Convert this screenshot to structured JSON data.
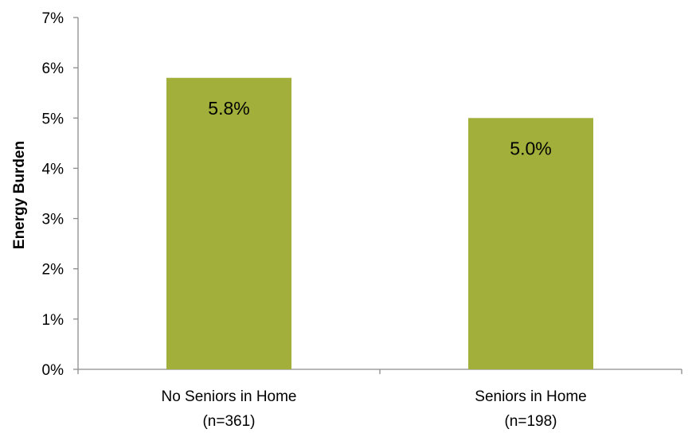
{
  "chart_data": {
    "type": "bar",
    "title": "",
    "xlabel": "",
    "ylabel": "Energy Burden",
    "categories": [
      [
        "No Seniors in Home",
        "(n=361)"
      ],
      [
        "Seniors in Home",
        "(n=198)"
      ]
    ],
    "values": [
      0.058,
      0.05
    ],
    "data_labels": [
      "5.8%",
      "5.0%"
    ],
    "ylim": [
      0,
      0.07
    ],
    "yticks": [
      0,
      0.01,
      0.02,
      0.03,
      0.04,
      0.05,
      0.06,
      0.07
    ],
    "ytick_labels": [
      "0%",
      "1%",
      "2%",
      "3%",
      "4%",
      "5%",
      "6%",
      "7%"
    ],
    "grid": false,
    "legend": "none",
    "colors": {
      "bar": "#A2B03B",
      "axis": "#8C8C8C",
      "text": "#000000"
    }
  }
}
